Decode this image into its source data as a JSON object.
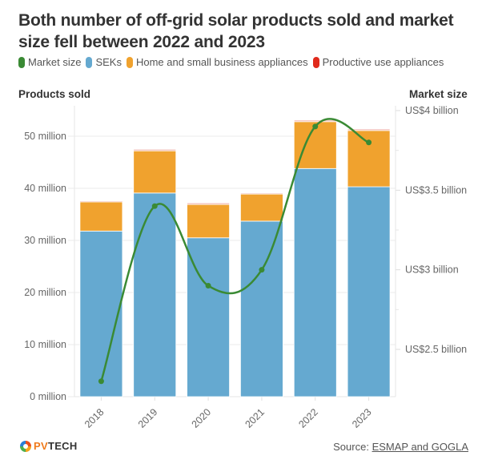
{
  "header": {
    "title": "Both number of off-grid solar products sold and market size fell between 2022 and 2023"
  },
  "legend": [
    {
      "label": "Market size",
      "color": "#3a8a34"
    },
    {
      "label": "SEKs",
      "color": "#65a9d0"
    },
    {
      "label": "Home and small business appliances",
      "color": "#f0a22e"
    },
    {
      "label": "Productive use appliances",
      "color": "#e02a1c"
    }
  ],
  "footer": {
    "logo_pv": "PV",
    "logo_tech": "TECH",
    "source_prefix": "Source: ",
    "source_link": "ESMAP and GOGLA"
  },
  "chart_data": {
    "type": "bar",
    "subtype": "stacked bar with line on secondary axis",
    "title": "Both number of off-grid solar products sold and market size fell between 2022 and 2023",
    "categories": [
      "2018",
      "2019",
      "2020",
      "2021",
      "2022",
      "2023"
    ],
    "series": [
      {
        "name": "SEKs",
        "type": "bar",
        "axis": "left",
        "color": "#65a9d0",
        "values": [
          31.8,
          39.1,
          30.5,
          33.7,
          43.8,
          40.3
        ]
      },
      {
        "name": "Home and small business appliances",
        "type": "bar",
        "axis": "left",
        "color": "#f0a22e",
        "values": [
          5.6,
          8.1,
          6.4,
          5.2,
          9.0,
          10.8
        ]
      },
      {
        "name": "Productive use appliances",
        "type": "bar",
        "axis": "left",
        "color": "#f2b8b0",
        "values": [
          0.2,
          0.3,
          0.3,
          0.2,
          0.3,
          0.3
        ]
      },
      {
        "name": "Market size",
        "type": "line",
        "axis": "right",
        "color": "#3a8a34",
        "values": [
          2.3,
          3.4,
          2.9,
          3.0,
          3.9,
          3.8
        ]
      }
    ],
    "y_left": {
      "label": "Products sold",
      "ylim": [
        0,
        50
      ],
      "ticks": [
        0,
        10,
        20,
        30,
        40,
        50
      ],
      "tick_labels": [
        "0 million",
        "10 million",
        "20 million",
        "30 million",
        "40 million",
        "50 million"
      ],
      "unit": "million"
    },
    "y_right": {
      "label": "Market size",
      "ylim": [
        2.5,
        4
      ],
      "ticks": [
        2.5,
        3,
        3.5,
        4
      ],
      "tick_labels": [
        "US$2.5 billion",
        "US$3 billion",
        "US$3.5 billion",
        "US$4 billion"
      ],
      "unit": "US$ billion"
    },
    "xlabel": "",
    "grid": true,
    "legend_position": "top-left"
  }
}
